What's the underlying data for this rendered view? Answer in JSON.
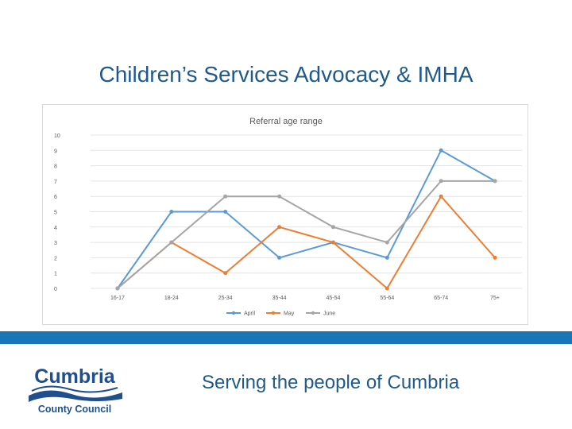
{
  "slide": {
    "title": "Children’s Services Advocacy & IMHA",
    "tagline": "Serving the people of Cumbria"
  },
  "logo": {
    "word": "Cumbria",
    "subtitle": "County Council",
    "color": "#1f4f8f"
  },
  "colors": {
    "title": "#1f5a8a",
    "band": "#1a75b8"
  },
  "chart_data": {
    "type": "line",
    "title": "Referral age range",
    "xlabel": "",
    "ylabel": "",
    "categories": [
      "16-17",
      "18-24",
      "25-34",
      "35-44",
      "45-54",
      "55-64",
      "65-74",
      "75+"
    ],
    "ylim": [
      0,
      10
    ],
    "yticks": [
      0,
      1,
      2,
      3,
      4,
      5,
      6,
      7,
      8,
      9,
      10
    ],
    "grid": true,
    "legend": "bottom",
    "series": [
      {
        "name": "April",
        "color": "#5b9bd5",
        "values": [
          0,
          5,
          5,
          2,
          3,
          2,
          9,
          7
        ]
      },
      {
        "name": "May",
        "color": "#ed7d31",
        "values": [
          0,
          3,
          1,
          4,
          3,
          0,
          6,
          2
        ]
      },
      {
        "name": "June",
        "color": "#a5a5a5",
        "values": [
          0,
          3,
          6,
          6,
          4,
          3,
          7,
          7
        ]
      }
    ]
  }
}
